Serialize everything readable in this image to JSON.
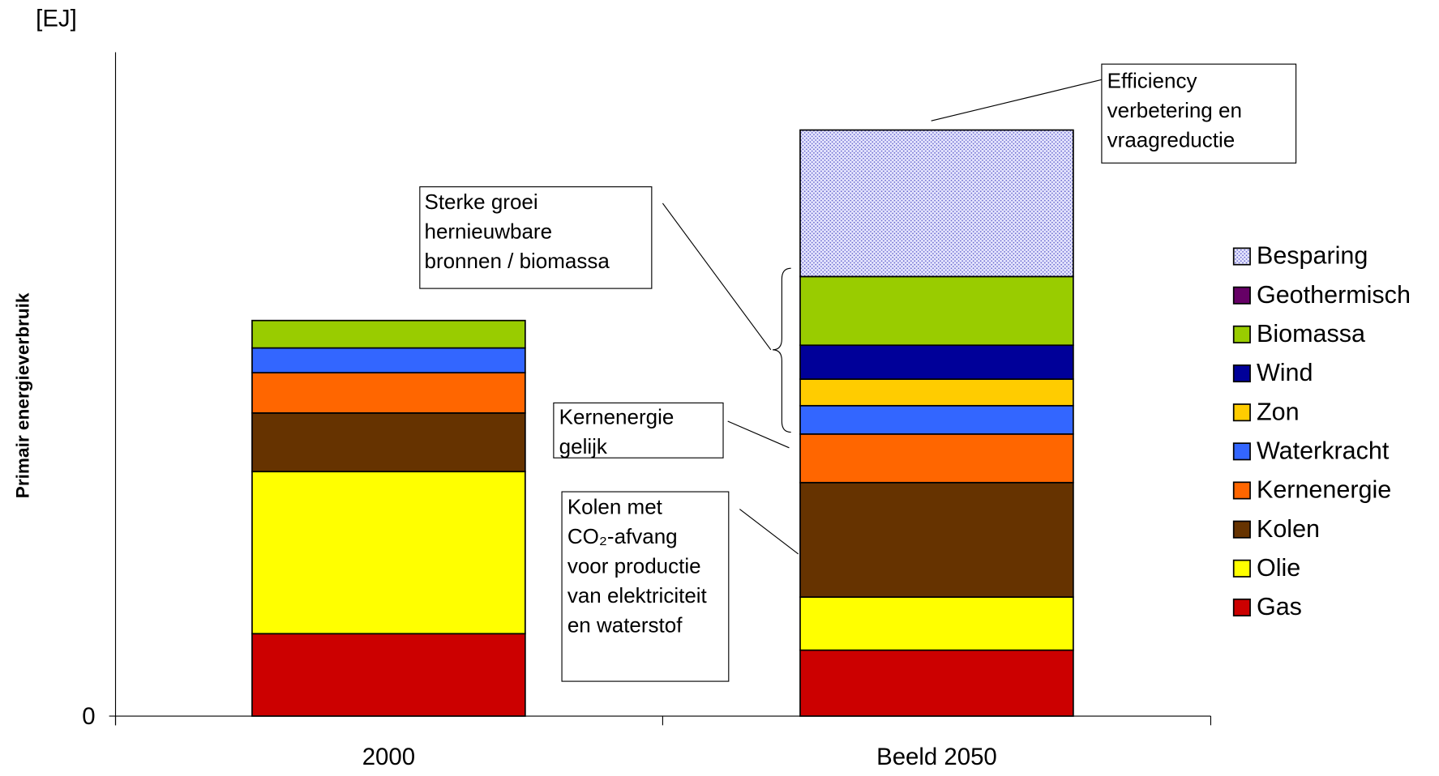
{
  "chart_data": {
    "type": "stacked_bar",
    "y_axis_label": "Primair energieverbruik",
    "unit_label": "[EJ]",
    "categories": [
      "2000",
      "Beeld 2050"
    ],
    "ylim": [
      0,
      725
    ],
    "yticks": [
      0
    ],
    "series": [
      {
        "name": "Gas",
        "color": "#cc0000",
        "values": [
          90,
          72
        ]
      },
      {
        "name": "Olie",
        "color": "#ffff00",
        "values": [
          177,
          58
        ]
      },
      {
        "name": "Kolen",
        "color": "#663300",
        "values": [
          64,
          125
        ]
      },
      {
        "name": "Kernenergie",
        "color": "#ff6600",
        "values": [
          44,
          53
        ]
      },
      {
        "name": "Waterkracht",
        "color": "#3366ff",
        "values": [
          27,
          31
        ]
      },
      {
        "name": "Zon",
        "color": "#ffcc00",
        "values": [
          0,
          29
        ]
      },
      {
        "name": "Wind",
        "color": "#000099",
        "values": [
          0,
          37
        ]
      },
      {
        "name": "Biomassa",
        "color": "#99cc00",
        "values": [
          30,
          75
        ]
      },
      {
        "name": "Geothermisch",
        "color": "#660066",
        "values": [
          0,
          0
        ]
      },
      {
        "name": "Besparing",
        "color": "#ccccff",
        "pattern": "dots",
        "values": [
          0,
          160
        ]
      }
    ],
    "annotations": [
      {
        "lines": [
          "Efficiency",
          "verbetering en",
          "vraagreductie"
        ]
      },
      {
        "lines": [
          "Sterke groei",
          "hernieuwbare",
          "bronnen / biomassa"
        ]
      },
      {
        "lines": [
          "Kernenergie",
          "gelijk"
        ]
      },
      {
        "lines": [
          "Kolen met",
          "CO₂-afvang",
          "voor productie",
          "van elektriciteit",
          "en waterstof"
        ]
      }
    ]
  }
}
